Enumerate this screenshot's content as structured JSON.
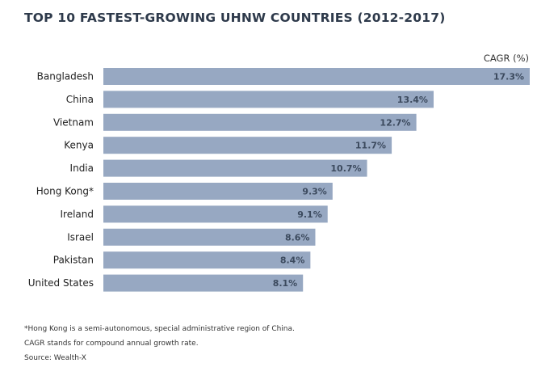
{
  "chart_data": {
    "type": "bar",
    "orientation": "horizontal",
    "title": "TOP 10 FASTEST-GROWING UHNW COUNTRIES (2012-2017)",
    "value_label": "CAGR (%)",
    "categories": [
      "Bangladesh",
      "China",
      "Vietnam",
      "Kenya",
      "India",
      "Hong Kong*",
      "Ireland",
      "Israel",
      "Pakistan",
      "United States"
    ],
    "values": [
      17.3,
      13.4,
      12.7,
      11.7,
      10.7,
      9.3,
      9.1,
      8.6,
      8.4,
      8.1
    ],
    "data_labels": [
      "17.3%",
      "13.4%",
      "12.7%",
      "11.7%",
      "10.7%",
      "9.3%",
      "9.1%",
      "8.6%",
      "8.4%",
      "8.1%"
    ],
    "xlim": [
      0,
      17.3
    ],
    "grid": false,
    "bar_color": "#97a8c2"
  },
  "notes": [
    "*Hong Kong is a semi-autonomous, special administrative region of China.",
    "CAGR stands for compound annual growth rate.",
    "Source: Wealth-X"
  ]
}
